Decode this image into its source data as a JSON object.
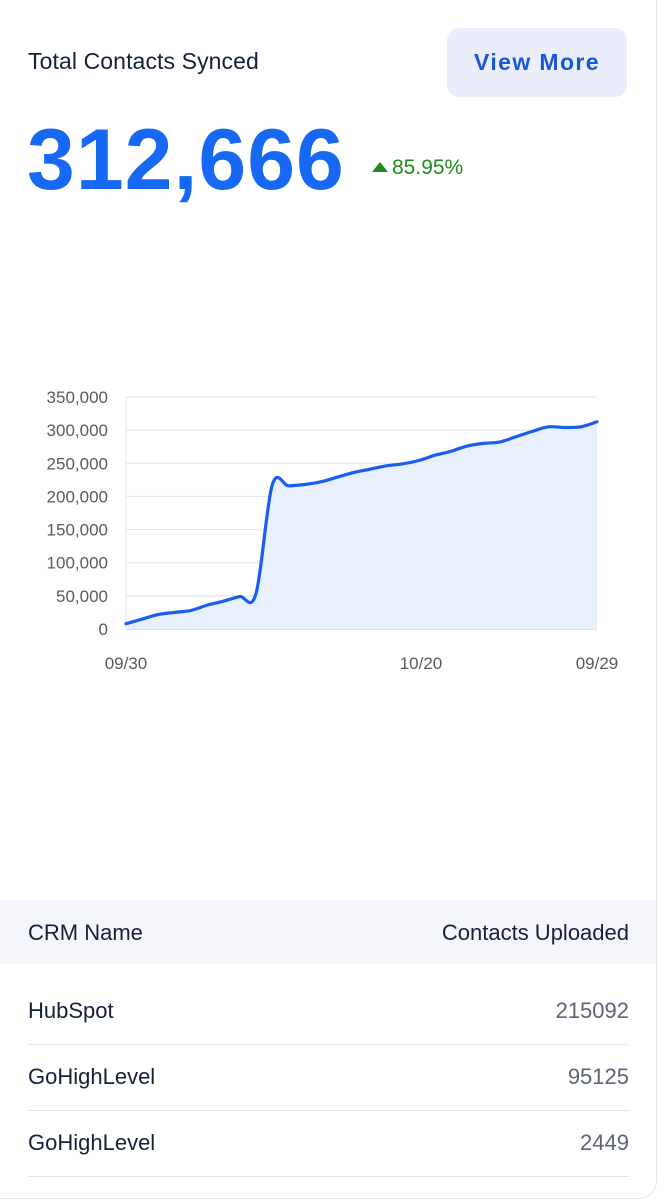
{
  "header": {
    "title": "Total Contacts Synced",
    "view_more_label": "View More"
  },
  "summary": {
    "total": "312,666",
    "change": "85.95%",
    "change_direction": "up",
    "change_color": "#1f8a1f",
    "total_color": "#1668f5"
  },
  "chart_data": {
    "type": "area",
    "title": "",
    "xlabel": "",
    "ylabel": "",
    "ylim": [
      0,
      350000
    ],
    "y_ticks": [
      "350,000",
      "300,000",
      "250,000",
      "200,000",
      "150,000",
      "100,000",
      "50,000",
      "0"
    ],
    "x_tick_labels": [
      "09/30",
      "10/20",
      "09/29"
    ],
    "grid": true,
    "line_color": "#1a5ef0",
    "fill_color": "#e8effd",
    "series": [
      {
        "values": [
          8000,
          15000,
          22000,
          25000,
          28000,
          36000,
          42000,
          49000,
          53000,
          217000,
          216000,
          218000,
          222000,
          229000,
          236000,
          241000,
          246000,
          249000,
          254000,
          262000,
          268000,
          276000,
          280000,
          282000,
          290000,
          298000,
          305000,
          304000,
          305000,
          312666
        ]
      }
    ]
  },
  "table": {
    "columns": [
      "CRM Name",
      "Contacts Uploaded"
    ],
    "rows": [
      {
        "name": "HubSpot",
        "value": "215092"
      },
      {
        "name": "GoHighLevel",
        "value": "95125"
      },
      {
        "name": "GoHighLevel",
        "value": "2449"
      }
    ]
  }
}
